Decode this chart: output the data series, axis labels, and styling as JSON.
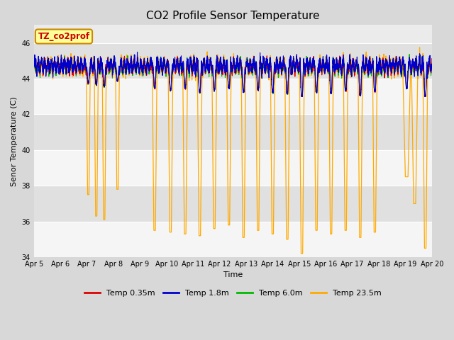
{
  "title": "CO2 Profile Sensor Temperature",
  "ylabel": "Senor Temperature (C)",
  "xlabel": "Time",
  "annotation": "TZ_co2prof",
  "ylim": [
    34,
    47
  ],
  "yticks": [
    34,
    36,
    38,
    40,
    42,
    44,
    46
  ],
  "xtick_labels": [
    "Apr 5",
    "Apr 6",
    "Apr 7",
    "Apr 8",
    "Apr 9",
    "Apr 10",
    "Apr 11",
    "Apr 12",
    "Apr 13",
    "Apr 14",
    "Apr 15",
    "Apr 16",
    "Apr 17",
    "Apr 18",
    "Apr 19",
    "Apr 20"
  ],
  "series": {
    "temp_035m": {
      "color": "#dd0000",
      "label": "Temp 0.35m",
      "linewidth": 0.8
    },
    "temp_18m": {
      "color": "#0000cc",
      "label": "Temp 1.8m",
      "linewidth": 0.8
    },
    "temp_60m": {
      "color": "#00bb00",
      "label": "Temp 6.0m",
      "linewidth": 0.8
    },
    "temp_235m": {
      "color": "#ffaa00",
      "label": "Temp 23.5m",
      "linewidth": 0.9
    }
  },
  "fig_bg_color": "#d8d8d8",
  "plot_bg_color": "#ebebeb",
  "band_color_light": "#f5f5f5",
  "band_color_dark": "#e0e0e0",
  "grid_color": "#ffffff",
  "annotation_bg": "#ffff99",
  "annotation_border": "#cc8800",
  "title_fontsize": 11,
  "label_fontsize": 8,
  "tick_fontsize": 7
}
